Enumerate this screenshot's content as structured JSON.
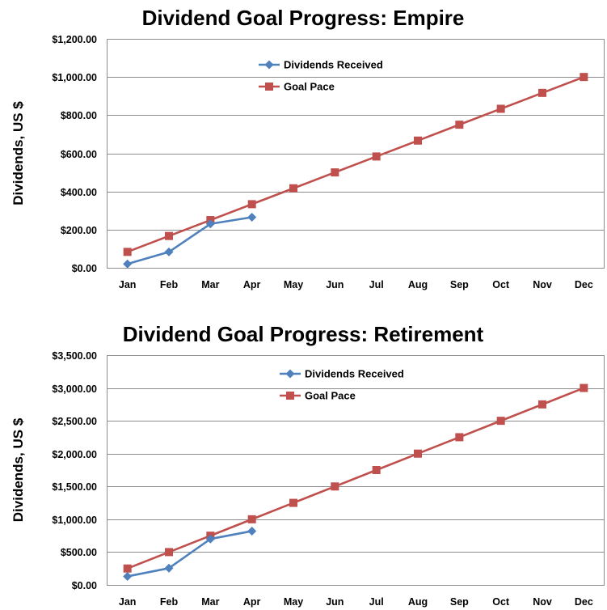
{
  "chart_data": [
    {
      "type": "line",
      "title": "Dividend Goal Progress: Empire",
      "ylabel": "Dividends, US $",
      "xlabel": "",
      "ylim": [
        0,
        1200
      ],
      "yticks": [
        "$0.00",
        "$200.00",
        "$400.00",
        "$600.00",
        "$800.00",
        "$1,000.00",
        "$1,200.00"
      ],
      "ytick_values": [
        0,
        200,
        400,
        600,
        800,
        1000,
        1200
      ],
      "categories": [
        "Jan",
        "Feb",
        "Mar",
        "Apr",
        "May",
        "Jun",
        "Jul",
        "Aug",
        "Sep",
        "Oct",
        "Nov",
        "Dec"
      ],
      "legend_position": "top-left",
      "grid": true,
      "series": [
        {
          "name": "Dividends Received",
          "color": "#4f81bd",
          "marker": "diamond",
          "values": [
            20,
            83,
            230,
            265,
            null,
            null,
            null,
            null,
            null,
            null,
            null,
            null
          ]
        },
        {
          "name": "Goal Pace",
          "color": "#c0504d",
          "marker": "square",
          "values": [
            83.33,
            166.67,
            250,
            333.33,
            416.67,
            500,
            583.33,
            666.67,
            750,
            833.33,
            916.67,
            1000
          ]
        }
      ]
    },
    {
      "type": "line",
      "title": "Dividend Goal Progress: Retirement",
      "ylabel": "Dividends, US $",
      "xlabel": "",
      "ylim": [
        0,
        3500
      ],
      "yticks": [
        "$0.00",
        "$500.00",
        "$1,000.00",
        "$1,500.00",
        "$2,000.00",
        "$2,500.00",
        "$3,000.00",
        "$3,500.00"
      ],
      "ytick_values": [
        0,
        500,
        1000,
        1500,
        2000,
        2500,
        3000,
        3500
      ],
      "categories": [
        "Jan",
        "Feb",
        "Mar",
        "Apr",
        "May",
        "Jun",
        "Jul",
        "Aug",
        "Sep",
        "Oct",
        "Nov",
        "Dec"
      ],
      "legend_position": "top-left",
      "grid": true,
      "series": [
        {
          "name": "Dividends Received",
          "color": "#4f81bd",
          "marker": "diamond",
          "values": [
            130,
            255,
            700,
            820,
            null,
            null,
            null,
            null,
            null,
            null,
            null,
            null
          ]
        },
        {
          "name": "Goal Pace",
          "color": "#c0504d",
          "marker": "square",
          "values": [
            250,
            500,
            750,
            1000,
            1250,
            1500,
            1750,
            2000,
            2250,
            2500,
            2750,
            3000
          ]
        }
      ]
    }
  ]
}
